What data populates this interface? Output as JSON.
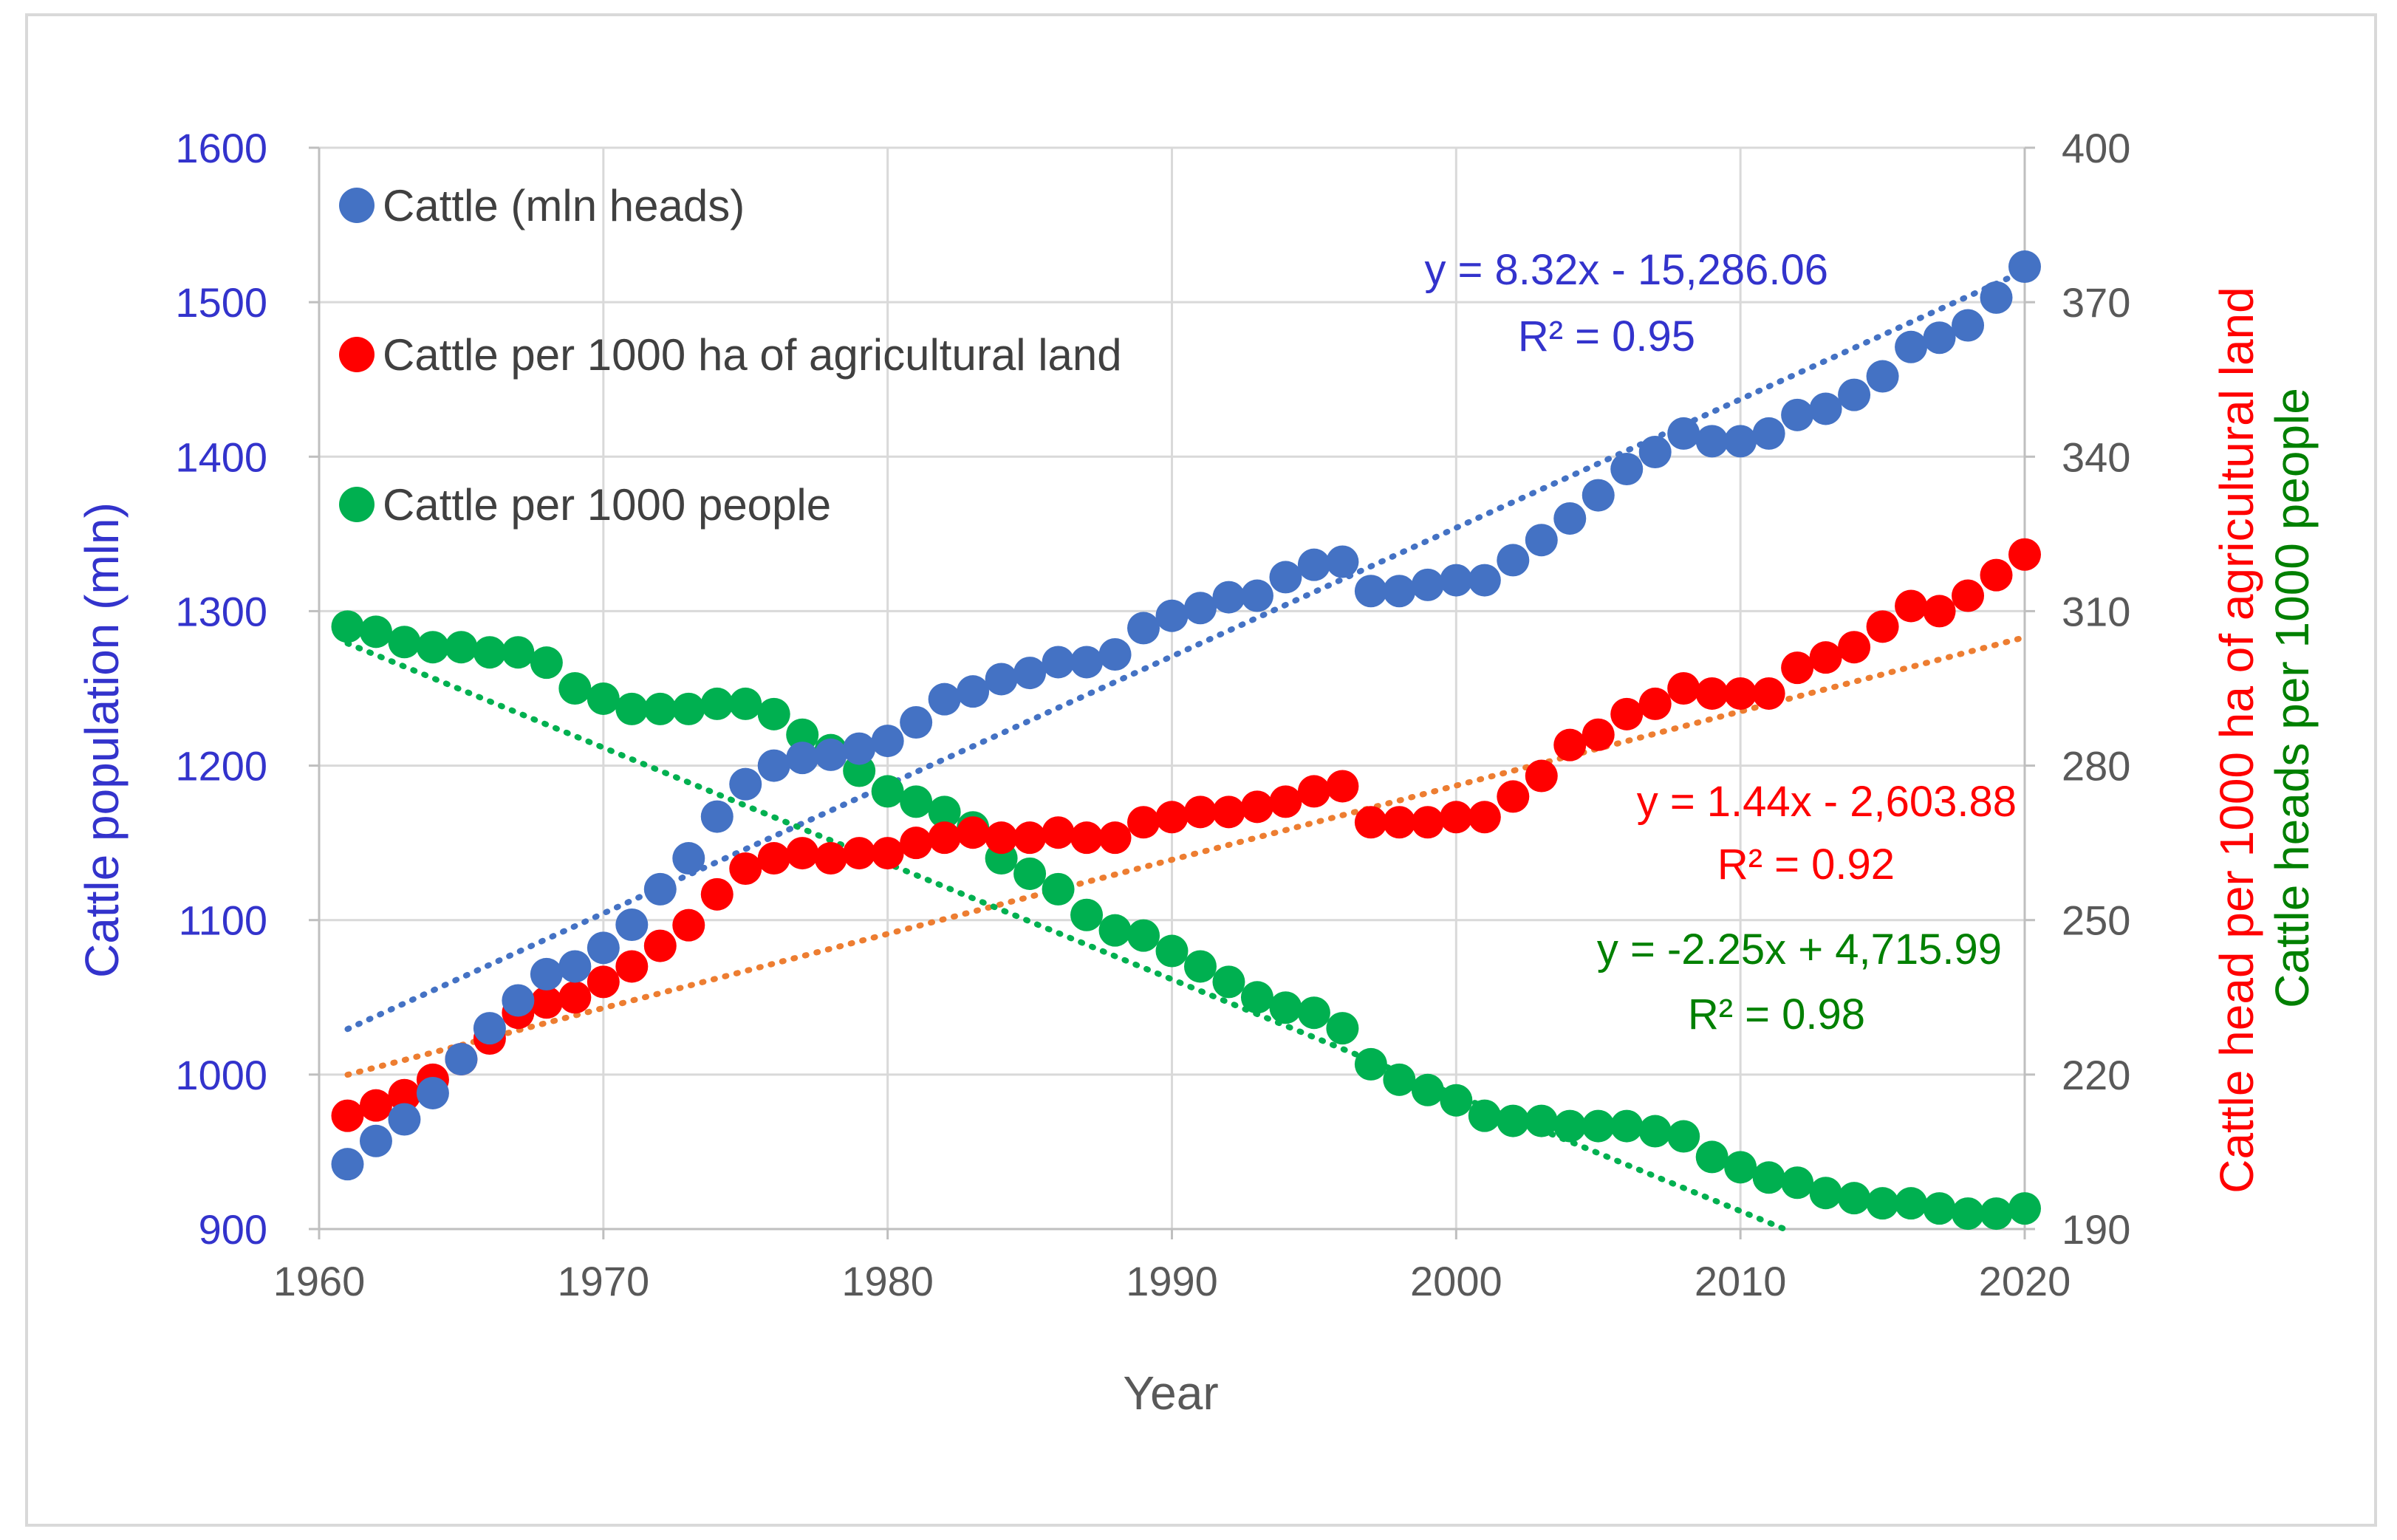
{
  "chart_data": {
    "type": "scatter",
    "x_axis": {
      "label": "Year",
      "range": [
        1960,
        2020
      ],
      "ticks": [
        1960,
        1970,
        1980,
        1990,
        2000,
        2010,
        2020
      ],
      "tick_labels": [
        "1960",
        "1970",
        "1980",
        "1990",
        "2000",
        "2010",
        "2020"
      ]
    },
    "y_axis_left": {
      "label": "Cattle population (mln)",
      "range": [
        900,
        1600
      ],
      "ticks": [
        900,
        1000,
        1100,
        1200,
        1300,
        1400,
        1500,
        1600
      ],
      "tick_labels": [
        "900",
        "1000",
        "1100",
        "1200",
        "1300",
        "1400",
        "1500",
        "1600"
      ],
      "color": "#3333CC"
    },
    "y_axis_right": {
      "range": [
        190,
        400
      ],
      "ticks": [
        190,
        220,
        250,
        280,
        310,
        340,
        370,
        400
      ],
      "tick_labels": [
        "190",
        "220",
        "250",
        "280",
        "310",
        "340",
        "370",
        "400"
      ],
      "label_red": "Cattle head per 1000 ha of agricultural land",
      "label_green": "Cattle heads per 1000 people",
      "color_red": "#FF0000",
      "color_green": "#008000"
    },
    "years": [
      1961,
      1962,
      1963,
      1964,
      1965,
      1966,
      1967,
      1968,
      1969,
      1970,
      1971,
      1972,
      1973,
      1974,
      1975,
      1976,
      1977,
      1978,
      1979,
      1980,
      1981,
      1982,
      1983,
      1984,
      1985,
      1986,
      1987,
      1988,
      1989,
      1990,
      1991,
      1992,
      1993,
      1994,
      1995,
      1996,
      1997,
      1998,
      1999,
      2000,
      2001,
      2002,
      2003,
      2004,
      2005,
      2006,
      2007,
      2008,
      2009,
      2010,
      2011,
      2012,
      2013,
      2014,
      2015,
      2016,
      2017,
      2018,
      2019,
      2020
    ],
    "series": [
      {
        "name": "Cattle (mln heads)",
        "axis": "left",
        "color": "#4472C4",
        "values": [
          942,
          957,
          971,
          988,
          1010,
          1030,
          1048,
          1065,
          1070,
          1082,
          1097,
          1120,
          1140,
          1167,
          1188,
          1200,
          1205,
          1207,
          1211,
          1216,
          1228,
          1243,
          1248,
          1256,
          1260,
          1267,
          1267,
          1272,
          1289,
          1297,
          1302,
          1309,
          1310,
          1322,
          1330,
          1332,
          1313,
          1313,
          1317,
          1320,
          1320,
          1333,
          1346,
          1360,
          1375,
          1392,
          1403,
          1415,
          1410,
          1410,
          1415,
          1427,
          1431,
          1440,
          1452,
          1471,
          1477,
          1485,
          1503,
          1523
        ],
        "trendline": {
          "slope": 8.32,
          "intercept": -15286.06,
          "color": "#4472C4",
          "equation": "y = 8.32x - 15,286.06",
          "r2": "R² = 0.95",
          "label_color": "#3333CC"
        }
      },
      {
        "name": "Cattle per 1000 ha of agricultural land",
        "axis": "right",
        "color": "#FF0000",
        "values": [
          212,
          214,
          216,
          219,
          223,
          227,
          232,
          234,
          235,
          238,
          241,
          245,
          249,
          255,
          260,
          262,
          263,
          262,
          263,
          263,
          265,
          266,
          267,
          266,
          266,
          267,
          266,
          266,
          269,
          270,
          271,
          271,
          272,
          273,
          275,
          276,
          269,
          269,
          269,
          270,
          270,
          274,
          278,
          284,
          286,
          290,
          292,
          295,
          294,
          294,
          294,
          299,
          301,
          303,
          307,
          311,
          310,
          313,
          317,
          321
        ],
        "trendline": {
          "slope": 1.44,
          "intercept": -2603.88,
          "color": "#ED7D31",
          "equation": "y = 1.44x - 2,603.88",
          "r2": "R² = 0.92",
          "label_color": "#FF0000"
        }
      },
      {
        "name": "Cattle per 1000 people",
        "axis": "right",
        "color": "#00B050",
        "values": [
          307,
          306,
          304,
          303,
          303,
          302,
          302,
          300,
          295,
          293,
          291,
          291,
          291,
          292,
          292,
          290,
          286,
          283,
          279,
          275,
          273,
          271,
          268,
          262,
          259,
          256,
          251,
          248,
          247,
          244,
          241,
          238,
          235,
          233,
          232,
          229,
          222,
          219,
          217,
          215,
          212,
          211,
          211,
          210,
          210,
          210,
          209,
          208,
          204,
          202,
          200,
          199,
          197,
          196,
          195,
          195,
          194,
          193,
          193,
          194
        ],
        "trendline": {
          "slope": -2.25,
          "intercept": 4715.99,
          "color": "#00B050",
          "equation": "y = -2.25x + 4,715.99",
          "r2": "R² = 0.98",
          "label_color": "#008000"
        }
      }
    ],
    "legend_position": "top-left"
  }
}
